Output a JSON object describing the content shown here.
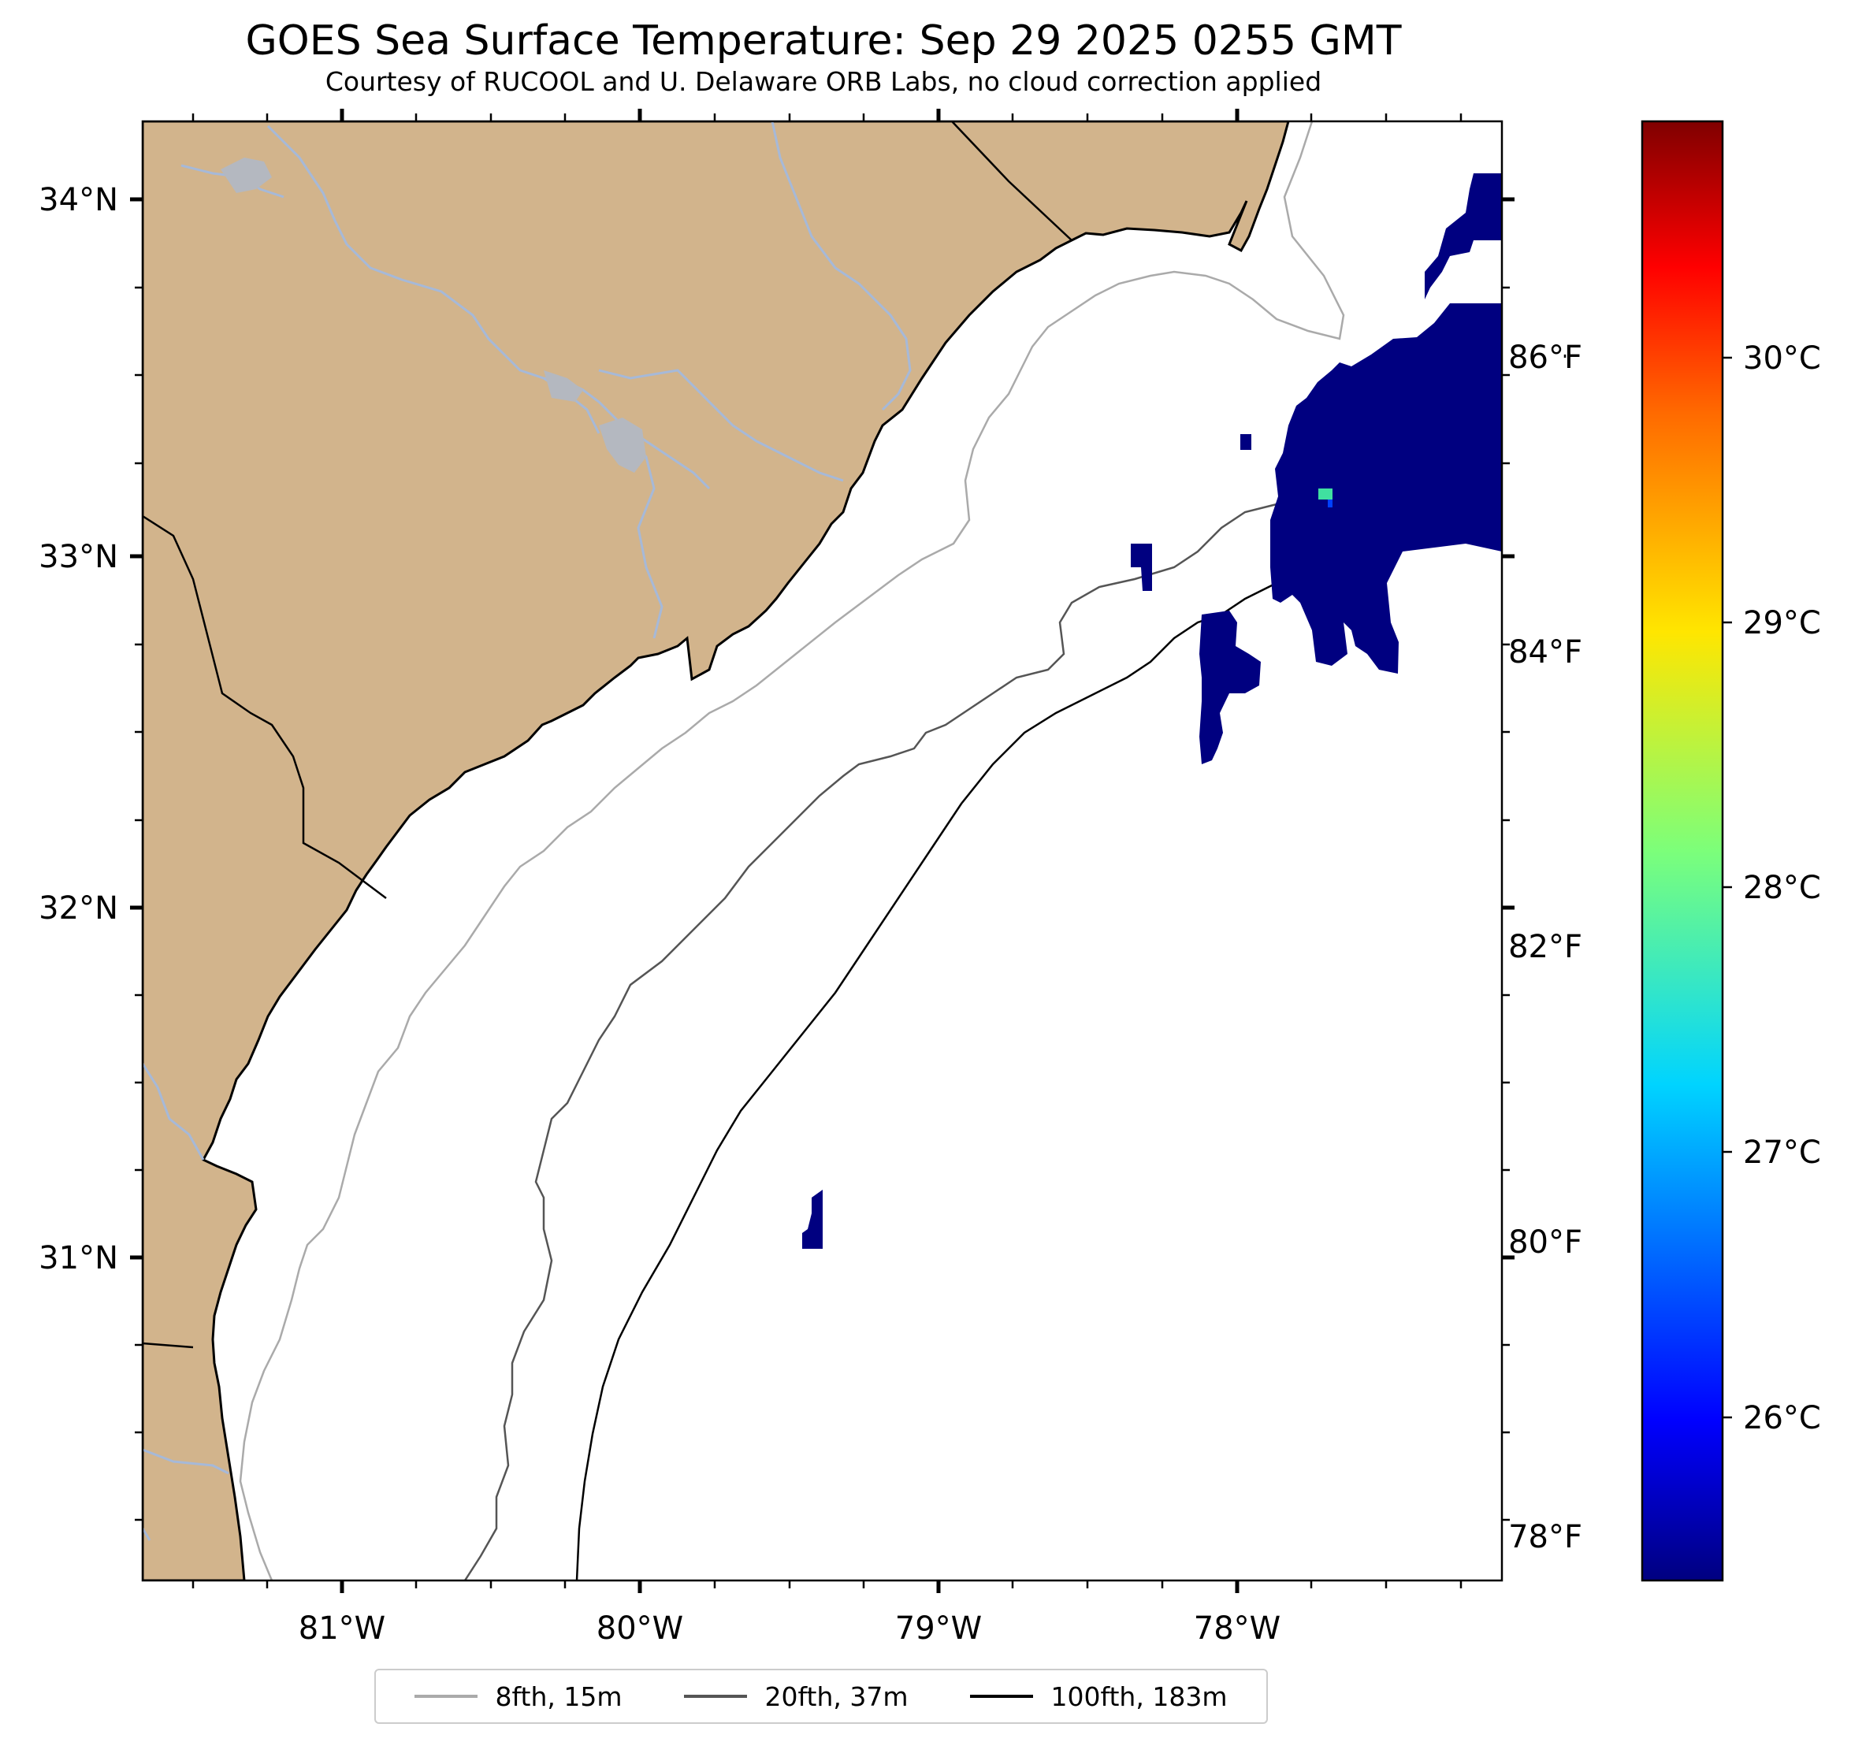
{
  "title": "GOES Sea Surface Temperature: Sep 29 2025 0255 GMT",
  "subtitle": "Courtesy of RUCOOL and U. Delaware ORB Labs, no cloud correction applied",
  "colors": {
    "land": "#d2b48c",
    "ocean": "#ffffff",
    "rivers": "#a6b9d8",
    "coast": "#000000",
    "sst_low": "#000080",
    "sst_patch": "#40e0a0"
  },
  "map": {
    "lon_range": [
      -81.66,
      -77.1
    ],
    "lat_range": [
      30.1,
      34.22
    ],
    "lon_labels": [
      "81°W",
      "80°W",
      "79°W",
      "78°W"
    ],
    "lat_labels": [
      "34°N",
      "33°N",
      "32°N",
      "31°N"
    ]
  },
  "colorbar": {
    "colormap": "jet",
    "celsius_labels": [
      "30°C",
      "29°C",
      "28°C",
      "27°C",
      "26°C"
    ],
    "fahrenheit_labels": [
      "86°F",
      "84°F",
      "82°F",
      "80°F",
      "78°F"
    ]
  },
  "legend": [
    {
      "label": "8fth, 15m",
      "color": "#aaaaaa"
    },
    {
      "label": "20fth, 37m",
      "color": "#555555"
    },
    {
      "label": "100fth, 183m",
      "color": "#000000"
    }
  ]
}
